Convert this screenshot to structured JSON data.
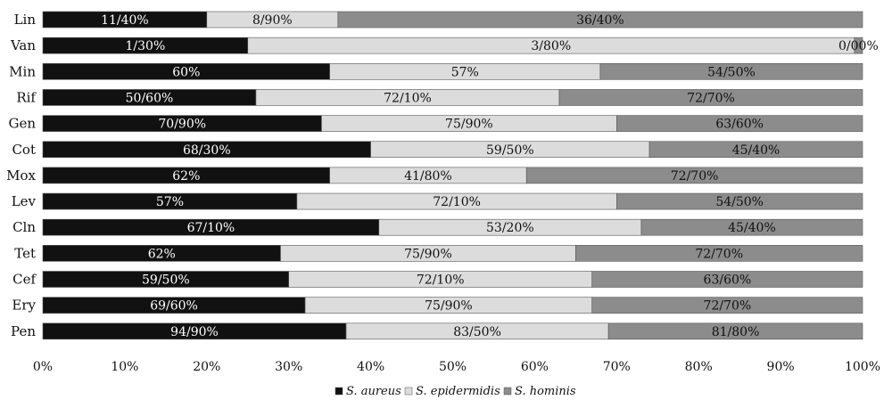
{
  "chart_data": {
    "type": "bar",
    "orientation": "horizontal",
    "stacked": "percent",
    "categories": [
      "Lin",
      "Van",
      "Min",
      "Rif",
      "Gen",
      "Cot",
      "Mox",
      "Lev",
      "Cln",
      "Tet",
      "Cef",
      "Ery",
      "Pen"
    ],
    "series": [
      {
        "name": "S. aureus",
        "color": "#111111",
        "label_color": "#ffffff",
        "values": [
          20,
          25,
          35,
          26,
          34,
          40,
          35,
          31,
          41,
          29,
          30,
          32,
          37
        ],
        "labels": [
          "11/40%",
          "1/30%",
          "60%",
          "50/60%",
          "70/90%",
          "68/30%",
          "62%",
          "57%",
          "67/10%",
          "62%",
          "59/50%",
          "69/60%",
          "94/90%"
        ]
      },
      {
        "name": "S. epidermidis",
        "color": "#dcdcdc",
        "label_color": "#111111",
        "values": [
          16,
          74,
          33,
          37,
          36,
          34,
          24,
          39,
          32,
          36,
          37,
          35,
          32
        ],
        "labels": [
          "8/90%",
          "3/80%",
          "57%",
          "72/10%",
          "75/90%",
          "59/50%",
          "41/80%",
          "72/10%",
          "53/20%",
          "75/90%",
          "72/10%",
          "75/90%",
          "83/50%"
        ]
      },
      {
        "name": "S. hominis",
        "color": "#8c8c8c",
        "label_color": "#111111",
        "values": [
          64,
          1,
          32,
          37,
          30,
          26,
          41,
          30,
          27,
          35,
          33,
          33,
          31
        ],
        "labels": [
          "36/40%",
          "0/00%",
          "54/50%",
          "72/70%",
          "63/60%",
          "45/40%",
          "72/70%",
          "54/50%",
          "45/40%",
          "72/70%",
          "63/60%",
          "72/70%",
          "81/80%"
        ]
      }
    ],
    "xlim": [
      0,
      100
    ],
    "x_ticks": [
      "0%",
      "10%",
      "20%",
      "30%",
      "40%",
      "50%",
      "60%",
      "70%",
      "80%",
      "90%",
      "100%"
    ],
    "grid": false,
    "legend_position": "bottom"
  }
}
